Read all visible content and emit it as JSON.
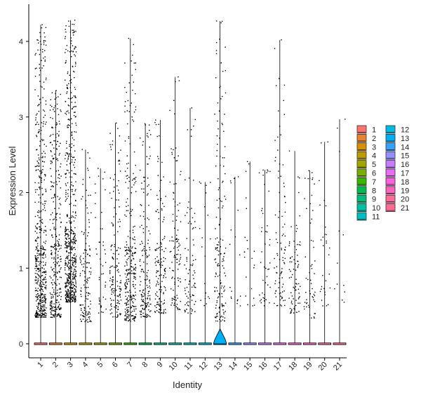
{
  "chart_data": {
    "type": "violin",
    "xlabel": "Identity",
    "ylabel": "Expression Level",
    "ylim": [
      -0.2,
      4.35
    ],
    "yticks": [
      0,
      1,
      2,
      3,
      4
    ],
    "categories": [
      "1",
      "2",
      "3",
      "4",
      "5",
      "6",
      "7",
      "8",
      "9",
      "10",
      "11",
      "12",
      "13",
      "14",
      "15",
      "16",
      "17",
      "18",
      "19",
      "20",
      "21"
    ],
    "max_values": [
      4.22,
      3.35,
      4.28,
      2.57,
      2.32,
      2.92,
      4.04,
      2.91,
      2.96,
      3.53,
      3.12,
      2.14,
      4.27,
      2.21,
      2.41,
      2.3,
      4.02,
      2.55,
      2.29,
      2.67,
      2.97
    ],
    "bulk_low": [
      0.35,
      0.35,
      0.55,
      0.28,
      0.4,
      0.35,
      0.3,
      0.35,
      0.4,
      0.45,
      0.4,
      0.5,
      0.3,
      0.5,
      0.5,
      0.5,
      0.5,
      0.4,
      0.3,
      0.5,
      0.5
    ],
    "bulk_high": [
      3.2,
      2.8,
      3.4,
      1.6,
      2.1,
      2.2,
      2.3,
      2.4,
      2.0,
      2.6,
      1.8,
      2.1,
      3.0,
      2.1,
      2.3,
      2.2,
      2.9,
      1.5,
      2.0,
      2.1,
      2.0
    ],
    "point_counts": [
      520,
      330,
      620,
      140,
      45,
      150,
      300,
      170,
      150,
      110,
      90,
      20,
      160,
      18,
      22,
      45,
      95,
      80,
      55,
      30,
      12
    ],
    "legend_position": "right",
    "legend": [
      {
        "label": "1",
        "color": "#F8766D"
      },
      {
        "label": "2",
        "color": "#EA8331"
      },
      {
        "label": "3",
        "color": "#D89000"
      },
      {
        "label": "4",
        "color": "#C09B00"
      },
      {
        "label": "5",
        "color": "#A3A500"
      },
      {
        "label": "6",
        "color": "#7CAE00"
      },
      {
        "label": "7",
        "color": "#39B600"
      },
      {
        "label": "8",
        "color": "#00BB4E"
      },
      {
        "label": "9",
        "color": "#00BF7D"
      },
      {
        "label": "10",
        "color": "#00C1A3"
      },
      {
        "label": "11",
        "color": "#00BFC4"
      },
      {
        "label": "12",
        "color": "#00BAE0"
      },
      {
        "label": "13",
        "color": "#00B0F6"
      },
      {
        "label": "14",
        "color": "#35A2FF"
      },
      {
        "label": "15",
        "color": "#9590FF"
      },
      {
        "label": "16",
        "color": "#C77CFF"
      },
      {
        "label": "17",
        "color": "#E76BF3"
      },
      {
        "label": "18",
        "color": "#FA62DB"
      },
      {
        "label": "19",
        "color": "#FF62BC"
      },
      {
        "label": "20",
        "color": "#FF6A98"
      },
      {
        "label": "21",
        "color": "#FF6C91"
      }
    ]
  }
}
